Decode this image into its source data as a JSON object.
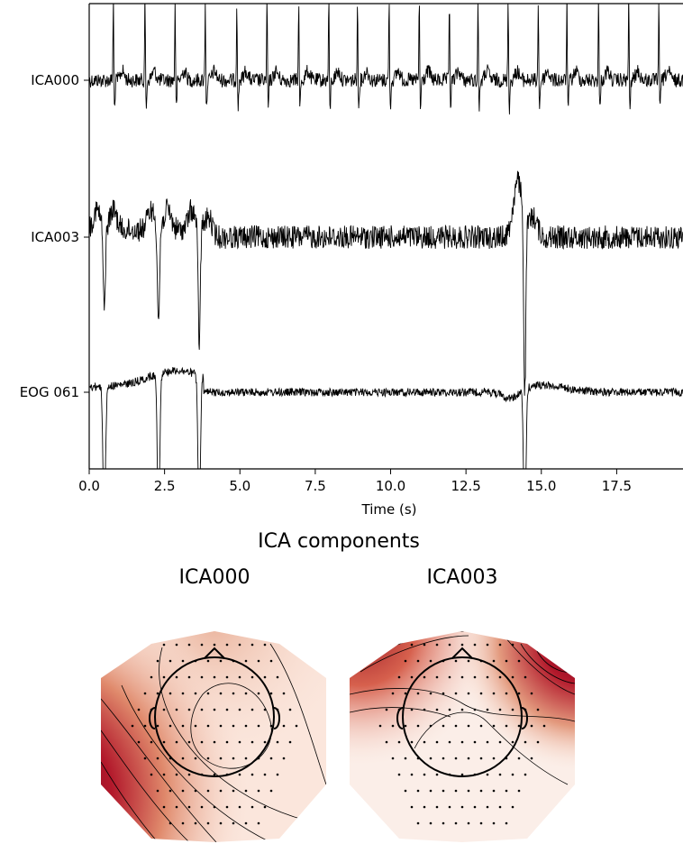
{
  "chart_data": [
    {
      "type": "line",
      "xlabel": "Time (s)",
      "ylabel": "",
      "xlim": [
        0,
        19.7
      ],
      "x_ticks": [
        "0.0",
        "2.5",
        "5.0",
        "7.5",
        "10.0",
        "12.5",
        "15.0",
        "17.5"
      ],
      "x_tick_values": [
        0,
        2.5,
        5,
        7.5,
        10,
        12.5,
        15,
        17.5
      ],
      "grid": false,
      "series": [
        {
          "name": "ICA000",
          "heartbeats_s": [
            0.8,
            1.85,
            2.85,
            3.85,
            4.9,
            5.9,
            6.95,
            7.95,
            8.9,
            9.95,
            10.95,
            11.95,
            12.9,
            13.9,
            14.9,
            15.85,
            16.9,
            17.9,
            18.9
          ]
        },
        {
          "name": "ICA003",
          "blinks_s": [
            0.5,
            2.3,
            3.65,
            14.45
          ]
        },
        {
          "name": "EOG 061",
          "blinks_s": [
            0.5,
            2.3,
            3.65,
            14.45
          ]
        }
      ]
    },
    {
      "type": "heatmap",
      "title": "ICA components",
      "panels": [
        {
          "name": "ICA000",
          "strongest_region": "left-posterior",
          "colormap": [
            "#f7f1ee",
            "#e6a48a",
            "#b53a2b",
            "#67001f"
          ]
        },
        {
          "name": "ICA003",
          "strongest_region": "frontal (left and right)",
          "colormap": [
            "#f7f1ee",
            "#e6a48a",
            "#b53a2b",
            "#67001f"
          ]
        }
      ]
    }
  ]
}
